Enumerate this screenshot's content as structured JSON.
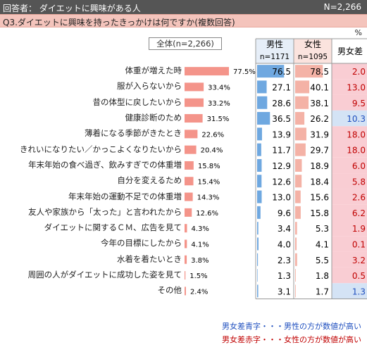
{
  "header": {
    "respondents": "回答者： ダイエットに興味がある人",
    "n": "N=2,266"
  },
  "question": "Q3.ダイエットに興味を持ったきっかけは何ですか(複数回答)",
  "unit": "%",
  "total_label": "全体(n=2,266)",
  "columns": {
    "male": "男性",
    "male_n": "n=1171",
    "female": "女性",
    "female_n": "n=1095",
    "diff": "男女差"
  },
  "footnotes": {
    "blue": "男女差青字・・・男性の方が数値が高い",
    "red": "男女差赤字・・・女性の方が数値が高い"
  },
  "colors": {
    "overall_bar": "#f4948a",
    "male_bar": "#6fa8e0",
    "female_bar": "#f4b2a6",
    "diff_red_bg": "#f9cdd3",
    "diff_blue_bg": "#d4e3f5",
    "red_text": "#c00000",
    "blue_text": "#1f4fbf"
  },
  "chart_data": {
    "type": "bar",
    "categories": [
      "体重が増えた時",
      "服が入らないから",
      "昔の体型に戻したいから",
      "健康診断のため",
      "薄着になる季節がきたとき",
      "きれいになりたい／かっこよくなりたいから",
      "年末年始の食べ過ぎ、飲みすぎでの体重増",
      "自分を変えるため",
      "年末年始の運動不足での体重増",
      "友人や家族から「太った」と言われたから",
      "ダイエットに関するＣＭ、広告を見て",
      "今年の目標にしたから",
      "水着を着たいとき",
      "周囲の人がダイエットに成功した姿を見て",
      "その他"
    ],
    "overall": [
      77.5,
      33.4,
      33.2,
      31.5,
      22.6,
      20.4,
      15.8,
      15.4,
      14.3,
      12.6,
      4.3,
      4.1,
      3.8,
      1.5,
      2.4
    ],
    "overall_labels": [
      "77.5%",
      "33.4%",
      "33.2%",
      "31.5%",
      "22.6%",
      "20.4%",
      "15.8%",
      "15.4%",
      "14.3%",
      "12.6%",
      "4.3%",
      "4.1%",
      "3.8%",
      "1.5%",
      "2.4%"
    ],
    "male": [
      76.5,
      27.1,
      28.6,
      36.5,
      13.9,
      11.7,
      12.9,
      12.6,
      13.0,
      9.6,
      3.4,
      4.0,
      2.3,
      1.3,
      3.1
    ],
    "male_labels": [
      "76.5",
      "27.1",
      "28.6",
      "36.5",
      "13.9",
      "11.7",
      "12.9",
      "12.6",
      "13.0",
      "9.6",
      "3.4",
      "4.0",
      "2.3",
      "1.3",
      "3.1"
    ],
    "female": [
      78.5,
      40.1,
      38.1,
      26.2,
      31.9,
      29.7,
      18.9,
      18.4,
      15.6,
      15.8,
      5.3,
      4.1,
      5.5,
      1.8,
      1.7
    ],
    "female_labels": [
      "78.5",
      "40.1",
      "38.1",
      "26.2",
      "31.9",
      "29.7",
      "18.9",
      "18.4",
      "15.6",
      "15.8",
      "5.3",
      "4.1",
      "5.5",
      "1.8",
      "1.7"
    ],
    "diff": [
      2.0,
      13.0,
      9.5,
      10.3,
      18.0,
      18.0,
      6.0,
      5.8,
      2.6,
      6.2,
      1.9,
      0.1,
      3.2,
      0.5,
      1.3
    ],
    "diff_labels": [
      "2.0",
      "13.0",
      "9.5",
      "10.3",
      "18.0",
      "18.0",
      "6.0",
      "5.8",
      "2.6",
      "6.2",
      "1.9",
      "0.1",
      "3.2",
      "0.5",
      "1.3"
    ],
    "diff_higher": [
      "female",
      "female",
      "female",
      "male",
      "female",
      "female",
      "female",
      "female",
      "female",
      "female",
      "female",
      "female",
      "female",
      "female",
      "male"
    ]
  }
}
